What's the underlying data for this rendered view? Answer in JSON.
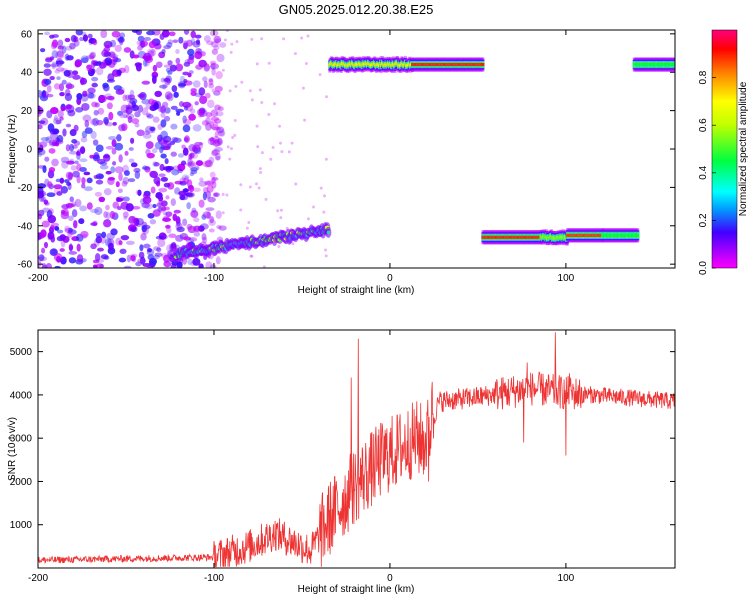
{
  "figure_title": "GN05.2025.012.20.38.E25",
  "chart_data": [
    {
      "type": "heatmap",
      "title": "GN05.2025.012.20.38.E25",
      "xlabel": "Height of straight line (km)",
      "ylabel": "Frequency (Hz)",
      "xlim": [
        -200,
        162
      ],
      "ylim": [
        -62,
        62
      ],
      "xticks": [
        -200,
        -100,
        0,
        100
      ],
      "yticks": [
        -60,
        -40,
        -20,
        0,
        20,
        40,
        60
      ],
      "colorbar": {
        "label": "Normalized spectral amplitude",
        "range": [
          0,
          1
        ],
        "ticks": [
          0.0,
          0.2,
          0.4,
          0.6,
          0.8
        ],
        "colormap": "rainbow (magenta-blue-cyan-green-yellow-red-magenta)"
      },
      "regions": [
        {
          "name": "noise",
          "x": [
            -200,
            -95
          ],
          "y": [
            -62,
            62
          ],
          "amplitude": 0.15
        },
        {
          "name": "lower-trace",
          "x": [
            -122,
            -35
          ],
          "y_start": -55,
          "y_end": -42,
          "amplitude": 0.3
        },
        {
          "name": "upper-trace-1",
          "x": [
            -35,
            52
          ],
          "y": 44,
          "amplitude": 0.85
        },
        {
          "name": "lower-trace-2",
          "x": [
            52,
            140
          ],
          "y": -46,
          "amplitude": 0.85
        },
        {
          "name": "upper-trace-2",
          "x": [
            138,
            162
          ],
          "y": 44,
          "amplitude": 0.5
        }
      ],
      "grid": false
    },
    {
      "type": "line",
      "xlabel": "Height of straight line (km)",
      "ylabel": "SNR (10 * v/v)",
      "xlim": [
        -200,
        162
      ],
      "ylim": [
        0,
        5500
      ],
      "xticks": [
        -200,
        -100,
        0,
        100
      ],
      "yticks": [
        1000,
        2000,
        3000,
        4000,
        5000
      ],
      "series": [
        {
          "color": "#ee3333",
          "envelope": [
            {
              "x": -200,
              "y": 180
            },
            {
              "x": -100,
              "y": 250
            },
            {
              "x": -80,
              "y": 500
            },
            {
              "x": -65,
              "y": 800
            },
            {
              "x": -55,
              "y": 600
            },
            {
              "x": -45,
              "y": 400
            },
            {
              "x": -35,
              "y": 1100
            },
            {
              "x": -20,
              "y": 1900
            },
            {
              "x": -5,
              "y": 2500
            },
            {
              "x": 15,
              "y": 3000
            },
            {
              "x": 20,
              "y": 2900
            },
            {
              "x": 28,
              "y": 3850
            },
            {
              "x": 50,
              "y": 3950
            },
            {
              "x": 80,
              "y": 4150
            },
            {
              "x": 100,
              "y": 4050
            },
            {
              "x": 130,
              "y": 3950
            },
            {
              "x": 162,
              "y": 3850
            }
          ],
          "spikes": [
            {
              "x": -18,
              "y": 5300
            },
            {
              "x": -22,
              "y": 4400
            },
            {
              "x": 24,
              "y": 4300
            },
            {
              "x": 94,
              "y": 5450
            },
            {
              "x": 78,
              "y": 4750
            },
            {
              "x": 102,
              "y": 4500
            },
            {
              "x": 76,
              "y": 2900
            },
            {
              "x": 100,
              "y": 2600
            },
            {
              "x": 22,
              "y": 2000
            }
          ]
        }
      ],
      "grid": false
    }
  ]
}
